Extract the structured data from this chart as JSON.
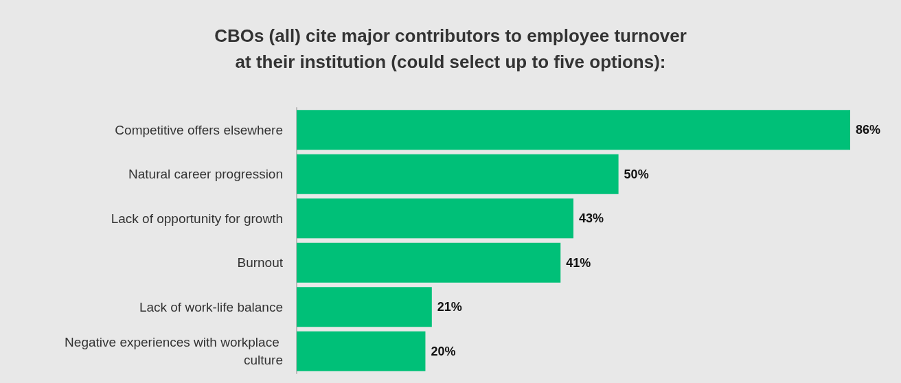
{
  "chart_data": {
    "type": "bar",
    "orientation": "horizontal",
    "title": "CBOs (all) cite major contributors to employee turnover\nat their institution (could select up to five options):",
    "categories": [
      "Competitive offers elsewhere",
      "Natural career progression",
      "Lack of opportunity for growth",
      "Burnout",
      "Lack of work-life balance",
      "Negative experiences with workplace culture"
    ],
    "values": [
      86,
      50,
      43,
      41,
      21,
      20
    ],
    "value_labels": [
      "86%",
      "50%",
      "43%",
      "41%",
      "21%",
      "20%"
    ],
    "color": "#00c078"
  }
}
